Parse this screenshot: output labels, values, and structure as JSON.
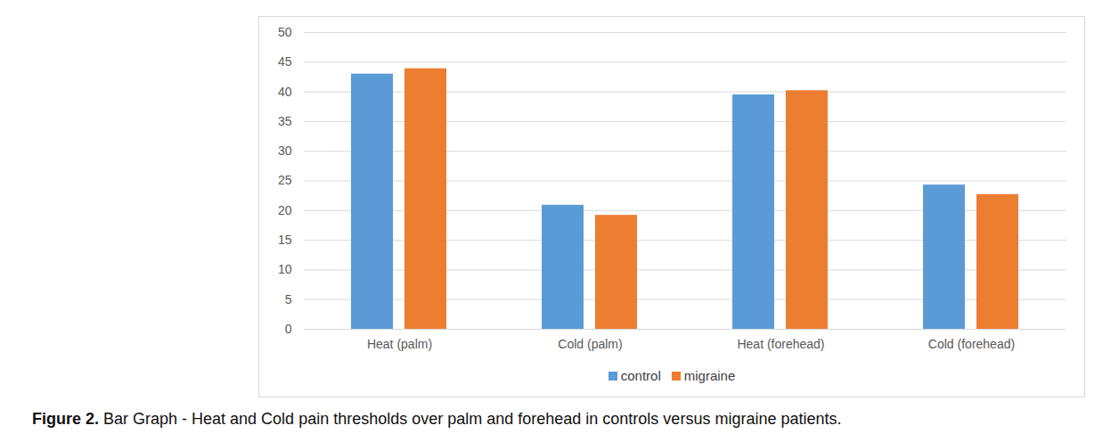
{
  "chart_data": {
    "type": "bar",
    "caption": "Figure 2. Bar Graph - Heat and Cold pain thresholds over palm and forehead in controls versus migraine patients.",
    "categories": [
      "Heat (palm)",
      "Cold (palm)",
      "Heat (forehead)",
      "Cold (forehead)"
    ],
    "series": [
      {
        "name": "control",
        "color": "#5b9bd5",
        "values": [
          43,
          20.9,
          39.5,
          24.3
        ]
      },
      {
        "name": "migraine",
        "color": "#ed7d31",
        "values": [
          43.9,
          19.2,
          40.2,
          22.7
        ]
      }
    ],
    "ylim": [
      0,
      50
    ],
    "yticks": [
      0,
      5,
      10,
      15,
      20,
      25,
      30,
      35,
      40,
      45,
      50
    ],
    "grid": true,
    "legend": "bottom"
  }
}
